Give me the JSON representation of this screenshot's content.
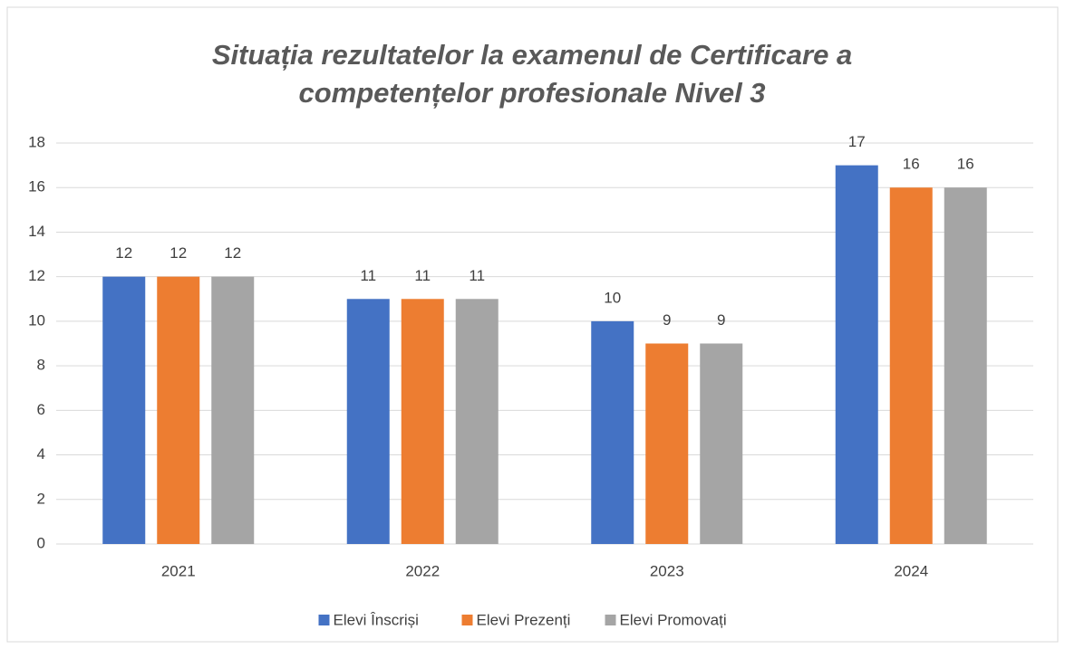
{
  "chart_data": {
    "type": "bar",
    "title": "Situația rezultatelor la examenul de Certificare a competențelor profesionale Nivel 3",
    "categories": [
      "2021",
      "2022",
      "2023",
      "2024"
    ],
    "series": [
      {
        "name": "Elevi Înscriși",
        "color": "#4472c4",
        "values": [
          12,
          11,
          10,
          17
        ]
      },
      {
        "name": "Elevi Prezenți",
        "color": "#ed7d31",
        "values": [
          12,
          11,
          9,
          16
        ]
      },
      {
        "name": "Elevi Promovați",
        "color": "#a5a5a5",
        "values": [
          12,
          11,
          9,
          16
        ]
      }
    ],
    "ylim": [
      0,
      18
    ],
    "yticks": [
      0,
      2,
      4,
      6,
      8,
      10,
      12,
      14,
      16,
      18
    ],
    "grid": true,
    "legend": "bottom"
  }
}
